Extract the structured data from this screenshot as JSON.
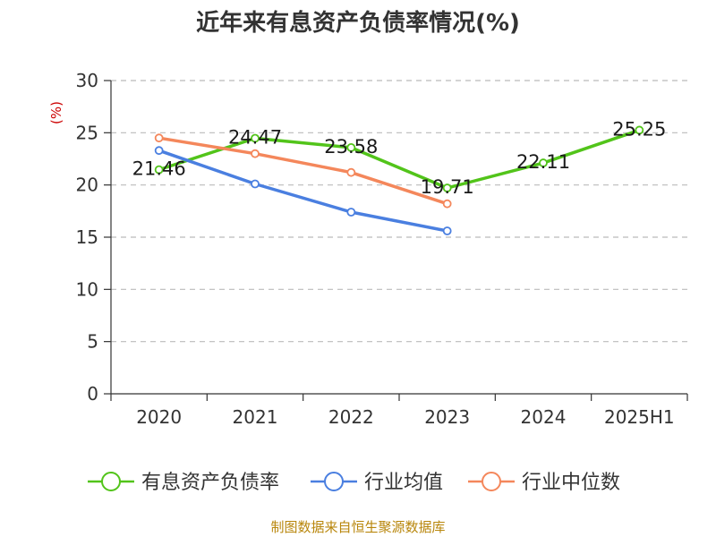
{
  "chart_data": {
    "type": "line",
    "title": "近年来有息资产负债率情况(%)",
    "unit": "(%)",
    "categories": [
      "2020",
      "2021",
      "2022",
      "2023",
      "2024",
      "2025H1"
    ],
    "ylim": [
      0,
      30
    ],
    "yticks": [
      0,
      5,
      10,
      15,
      20,
      25,
      30
    ],
    "grid": true,
    "legend_position": "bottom",
    "series": [
      {
        "name": "有息资产负债率",
        "color": "#52c41a",
        "values": [
          21.46,
          24.47,
          23.58,
          19.71,
          22.11,
          25.25
        ],
        "labels": [
          "21.46",
          "24.47",
          "23.58",
          "19.71",
          "22.11",
          "25.25"
        ]
      },
      {
        "name": "行业均值",
        "color": "#4a7fe0",
        "values": [
          23.3,
          20.1,
          17.4,
          15.6,
          null,
          null
        ]
      },
      {
        "name": "行业中位数",
        "color": "#f4875b",
        "values": [
          24.5,
          23.0,
          21.2,
          18.2,
          null,
          null
        ]
      }
    ],
    "source": "制图数据来自恒生聚源数据库"
  }
}
